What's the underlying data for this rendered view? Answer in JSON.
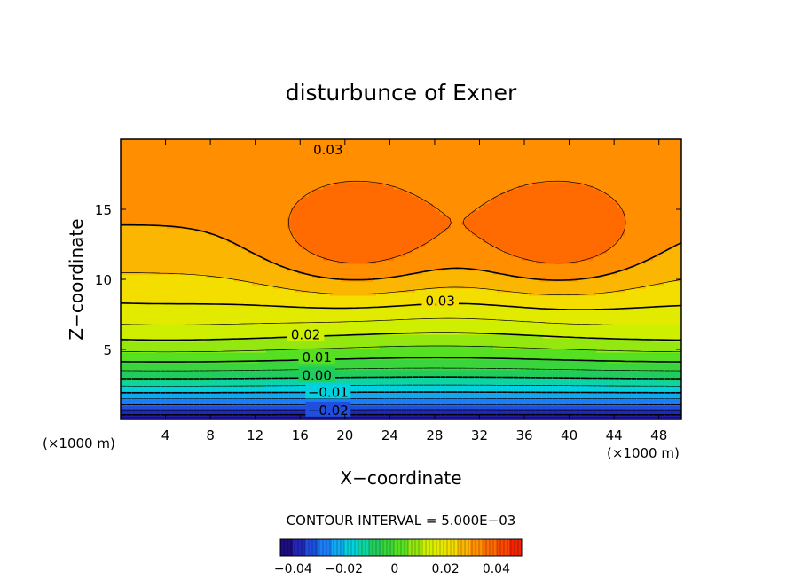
{
  "chart_data": {
    "type": "contour",
    "title": "disturbunce of Exner",
    "xlabel": "X−coordinate",
    "ylabel": "Z−coordinate",
    "x_unit_left": "(×1000 m)",
    "x_unit_right": "(×1000 m)",
    "xlim": [
      0,
      50
    ],
    "ylim": [
      0,
      20
    ],
    "x_ticks": [
      4,
      8,
      12,
      16,
      20,
      24,
      28,
      32,
      36,
      40,
      44,
      48
    ],
    "y_ticks": [
      5,
      10,
      15
    ],
    "contour_interval_text": "CONTOUR INTERVAL = 5.000E−03",
    "contour_interval": 0.005,
    "value_range": [
      -0.045,
      0.05
    ],
    "contour_labels": [
      {
        "text": "0.03",
        "x": 18.5,
        "z": 19.3
      },
      {
        "text": "0.03",
        "x": 28.5,
        "z": 8.5
      },
      {
        "text": "0.02",
        "x": 16.5,
        "z": 6.1
      },
      {
        "text": "0.01",
        "x": 17.5,
        "z": 4.5
      },
      {
        "text": "0.00",
        "x": 17.5,
        "z": 3.2
      },
      {
        "text": "−0.01",
        "x": 18.5,
        "z": 2.0
      },
      {
        "text": "−0.02",
        "x": 18.5,
        "z": 0.7
      }
    ],
    "colorbar": {
      "tick_values": [
        -0.04,
        -0.02,
        0,
        0.02,
        0.04
      ],
      "tick_labels": [
        "−0.04",
        "−0.02",
        "0",
        "0.02",
        "0.04"
      ]
    },
    "colormap": [
      "#1a0066",
      "#2233cc",
      "#1a8cff",
      "#00d9d9",
      "#22cc55",
      "#55e022",
      "#ccf000",
      "#f2e600",
      "#ff9a00",
      "#ff5500",
      "#ee1100"
    ]
  }
}
